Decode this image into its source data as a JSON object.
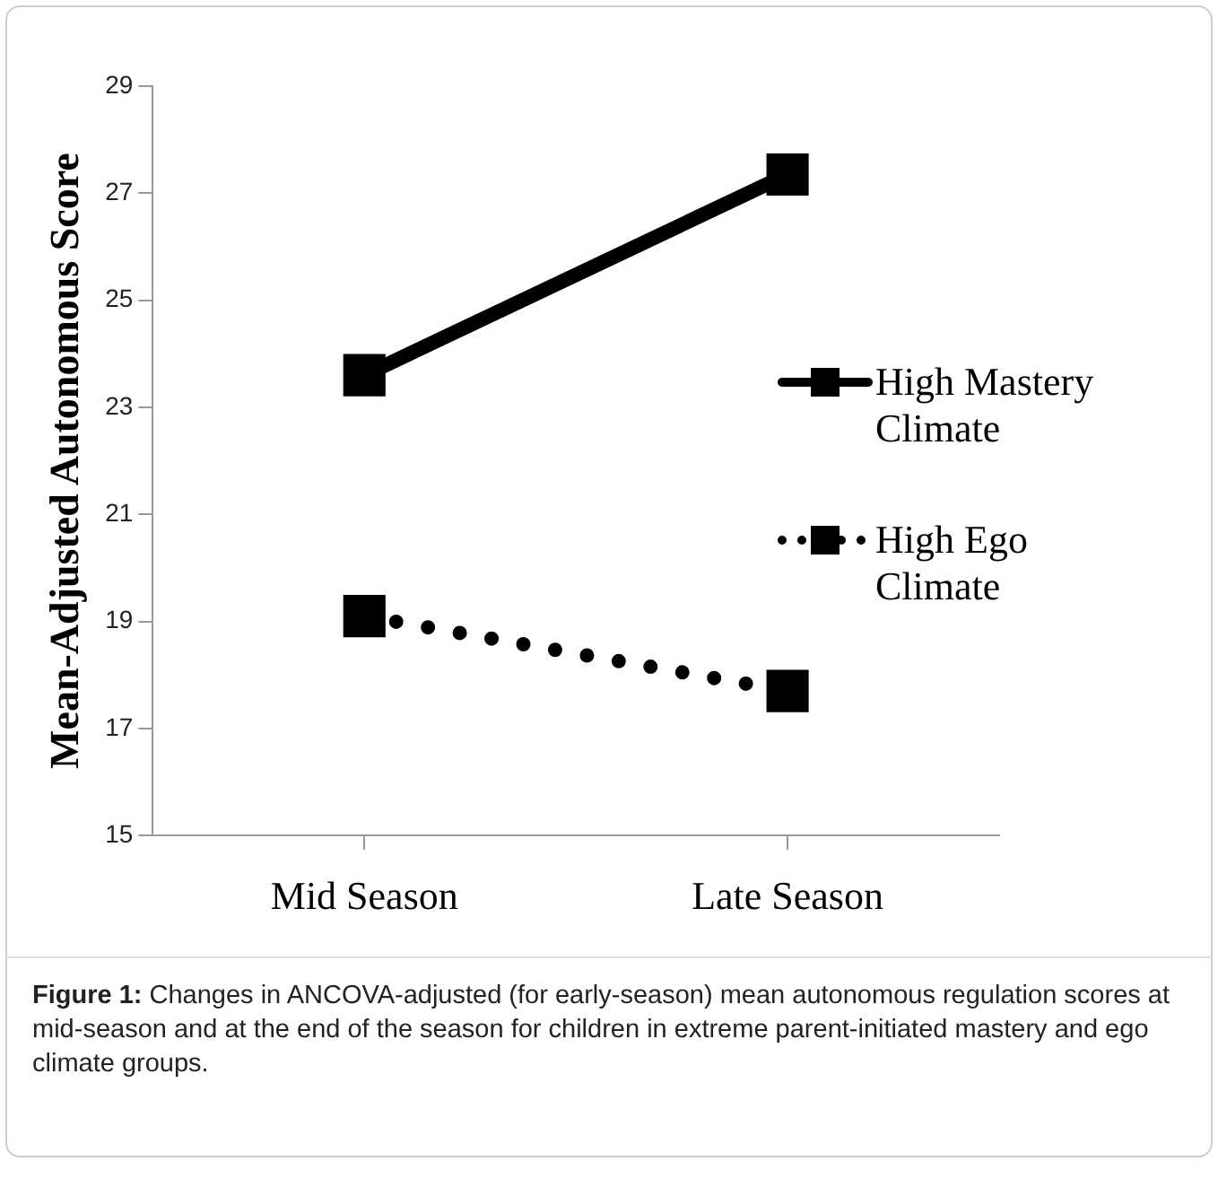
{
  "chart_data": {
    "type": "line",
    "ylabel": "Mean-Adjusted Autonomous Score",
    "categories": [
      "Mid Season",
      "Late Season"
    ],
    "series": [
      {
        "name": "High Mastery Climate",
        "color": "#000000",
        "values": [
          23.6,
          27.35
        ],
        "line_style": "solid"
      },
      {
        "name": "High Ego Climate",
        "color": "#000000",
        "values": [
          19.1,
          17.7
        ],
        "line_style": "dotted"
      }
    ],
    "ylim": [
      15,
      29
    ],
    "yticks": [
      15,
      17,
      19,
      21,
      23,
      25,
      27,
      29
    ],
    "grid": false,
    "legend": "right",
    "marker": "square",
    "annotations": [
      "Figure 1: Changes in ANCOVA-adjusted (for early-season) mean autonomous regulation scores at mid-season and at the end of the season for children in extreme parent-initiated mastery and ego climate groups."
    ]
  }
}
